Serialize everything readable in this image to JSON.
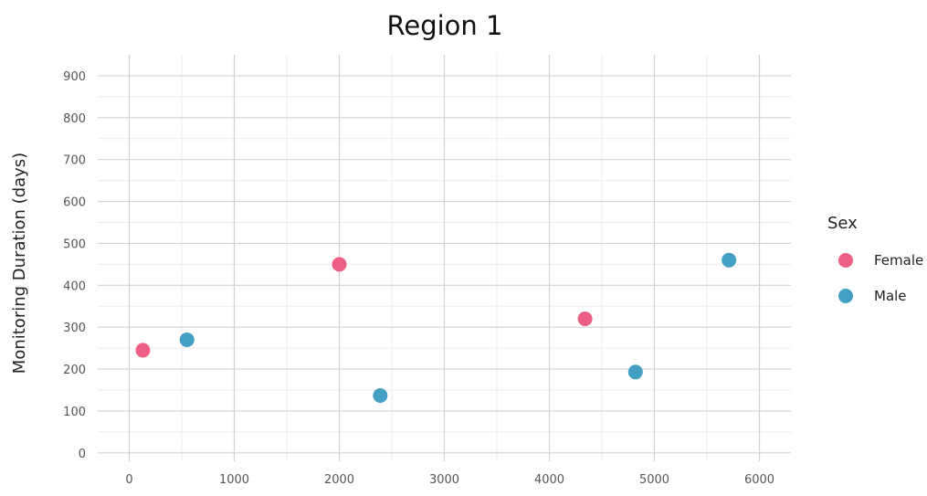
{
  "chart_data": {
    "type": "scatter",
    "title": "Region 1",
    "xlabel": "",
    "ylabel": "Monitoring Duration (days)",
    "xlim": [
      -300,
      6300
    ],
    "ylim": [
      -20,
      950
    ],
    "x_ticks": [
      0,
      1000,
      2000,
      3000,
      4000,
      5000,
      6000
    ],
    "y_ticks": [
      0,
      100,
      200,
      300,
      400,
      500,
      600,
      700,
      800,
      900
    ],
    "grid": true,
    "legend": {
      "title": "Sex",
      "position": "right"
    },
    "series": [
      {
        "name": "Female",
        "color": "#EE5F86",
        "points": [
          {
            "x": 130,
            "y": 245
          },
          {
            "x": 2000,
            "y": 450
          },
          {
            "x": 4340,
            "y": 320
          }
        ]
      },
      {
        "name": "Male",
        "color": "#43A0C4",
        "points": [
          {
            "x": 550,
            "y": 270
          },
          {
            "x": 2390,
            "y": 137
          },
          {
            "x": 4820,
            "y": 193
          },
          {
            "x": 5710,
            "y": 460
          }
        ]
      }
    ]
  }
}
